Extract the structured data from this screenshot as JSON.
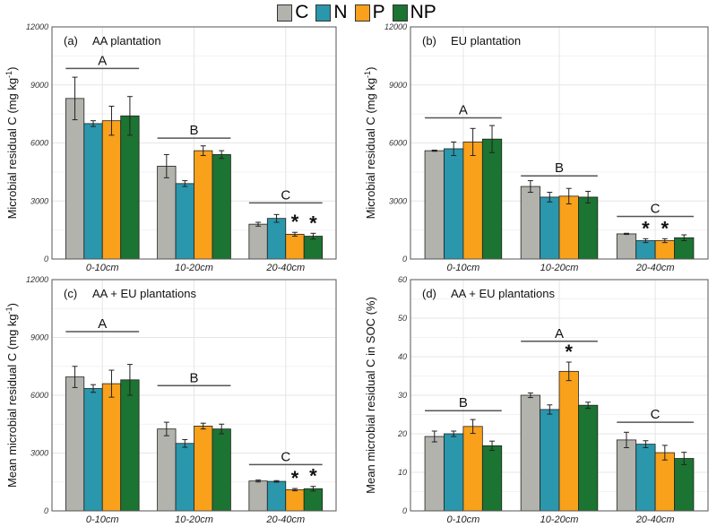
{
  "legend": [
    {
      "name": "C",
      "color": "#b1b3ac"
    },
    {
      "name": "N",
      "color": "#2a97ac"
    },
    {
      "name": "P",
      "color": "#f9a11b"
    },
    {
      "name": "NP",
      "color": "#1b7431"
    }
  ],
  "chart_data": [
    {
      "type": "bar",
      "panel": "(a)",
      "title": "AA plantation",
      "ylabel": "Microbial residual C (mg kg",
      "ylabel_sup": "-1",
      "ylabel_end": ")",
      "ylim": [
        0,
        12000
      ],
      "yticks": [
        0,
        3000,
        6000,
        9000,
        12000
      ],
      "categories": [
        "0-10cm",
        "10-20cm",
        "20-40cm"
      ],
      "series": [
        {
          "name": "C",
          "values": [
            8300,
            4800,
            1800
          ],
          "errors": [
            1100,
            600,
            100
          ]
        },
        {
          "name": "N",
          "values": [
            7000,
            3900,
            2100
          ],
          "errors": [
            150,
            150,
            200
          ]
        },
        {
          "name": "P",
          "values": [
            7150,
            5600,
            1280
          ],
          "errors": [
            750,
            250,
            100
          ]
        },
        {
          "name": "NP",
          "values": [
            7400,
            5400,
            1180
          ],
          "errors": [
            1000,
            200,
            150
          ]
        }
      ],
      "letters": [
        {
          "text": "A",
          "y": 9850
        },
        {
          "text": "B",
          "y": 6250
        },
        {
          "text": "C",
          "y": 2900
        }
      ],
      "stars": [
        [],
        [],
        [
          "P",
          "NP"
        ]
      ]
    },
    {
      "type": "bar",
      "panel": "(b)",
      "title": "EU plantation",
      "ylabel": "Microbial residual C (mg kg",
      "ylabel_sup": "-1",
      "ylabel_end": ")",
      "ylim": [
        0,
        12000
      ],
      "yticks": [
        0,
        3000,
        6000,
        9000,
        12000
      ],
      "categories": [
        "0-10cm",
        "10-20cm",
        "20-40cm"
      ],
      "series": [
        {
          "name": "C",
          "values": [
            5600,
            3750,
            1300
          ],
          "errors": [
            30,
            300,
            30
          ]
        },
        {
          "name": "N",
          "values": [
            5700,
            3200,
            950
          ],
          "errors": [
            350,
            250,
            100
          ]
        },
        {
          "name": "P",
          "values": [
            6050,
            3250,
            950
          ],
          "errors": [
            700,
            400,
            100
          ]
        },
        {
          "name": "NP",
          "values": [
            6200,
            3200,
            1100
          ],
          "errors": [
            700,
            300,
            150
          ]
        }
      ],
      "letters": [
        {
          "text": "A",
          "y": 7300
        },
        {
          "text": "B",
          "y": 4300
        },
        {
          "text": "C",
          "y": 2200
        }
      ],
      "stars": [
        [],
        [],
        [
          "N",
          "P"
        ]
      ]
    },
    {
      "type": "bar",
      "panel": "(c)",
      "title": "AA + EU plantations",
      "ylabel": "Mean microbial residual C (mg kg",
      "ylabel_sup": "-1",
      "ylabel_end": ")",
      "ylim": [
        0,
        12000
      ],
      "yticks": [
        0,
        3000,
        6000,
        9000,
        12000
      ],
      "categories": [
        "0-10cm",
        "10-20cm",
        "20-40cm"
      ],
      "series": [
        {
          "name": "C",
          "values": [
            6950,
            4250,
            1550
          ],
          "errors": [
            550,
            350,
            50
          ]
        },
        {
          "name": "N",
          "values": [
            6350,
            3500,
            1530
          ],
          "errors": [
            200,
            200,
            40
          ]
        },
        {
          "name": "P",
          "values": [
            6600,
            4400,
            1100
          ],
          "errors": [
            700,
            150,
            60
          ]
        },
        {
          "name": "NP",
          "values": [
            6800,
            4250,
            1150
          ],
          "errors": [
            800,
            250,
            120
          ]
        }
      ],
      "letters": [
        {
          "text": "A",
          "y": 9300
        },
        {
          "text": "B",
          "y": 6500
        },
        {
          "text": "C",
          "y": 2400
        }
      ],
      "stars": [
        [],
        [],
        [
          "P",
          "NP"
        ]
      ]
    },
    {
      "type": "bar",
      "panel": "(d)",
      "title": "AA + EU plantations",
      "ylabel": "Mean microbial residual C in SOC (%)",
      "ylabel_sup": "",
      "ylabel_end": "",
      "ylim": [
        0,
        60
      ],
      "yticks": [
        0,
        10,
        20,
        30,
        40,
        50,
        60
      ],
      "categories": [
        "0-10cm",
        "10-20cm",
        "20-40cm"
      ],
      "series": [
        {
          "name": "C",
          "values": [
            19.3,
            30,
            18.4
          ],
          "errors": [
            1.4,
            0.6,
            2
          ]
        },
        {
          "name": "N",
          "values": [
            20,
            26.3,
            17.3
          ],
          "errors": [
            0.7,
            1.2,
            0.9
          ]
        },
        {
          "name": "P",
          "values": [
            21.9,
            36.2,
            15.1
          ],
          "errors": [
            1.8,
            2.4,
            1.9
          ]
        },
        {
          "name": "NP",
          "values": [
            16.9,
            27.4,
            13.6
          ],
          "errors": [
            1.2,
            0.8,
            1.6
          ]
        }
      ],
      "letters": [
        {
          "text": "B",
          "y": 26
        },
        {
          "text": "A",
          "y": 44
        },
        {
          "text": "C",
          "y": 23
        }
      ],
      "stars": [
        [],
        [
          "P"
        ],
        []
      ]
    }
  ]
}
